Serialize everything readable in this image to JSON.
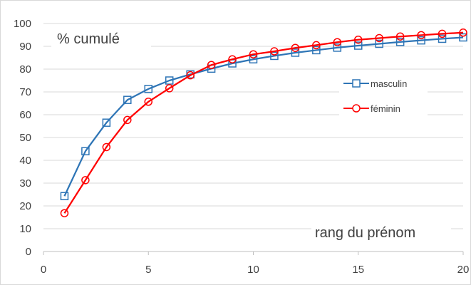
{
  "chart_data": {
    "type": "line",
    "title": "",
    "xlabel": "rang du prénom",
    "ylabel": "% cumulé",
    "xlim": [
      0,
      20
    ],
    "ylim": [
      0,
      100
    ],
    "x_ticks": [
      0,
      5,
      10,
      15,
      20
    ],
    "y_ticks": [
      0,
      10,
      20,
      30,
      40,
      50,
      60,
      70,
      80,
      90,
      100
    ],
    "grid": "horizontal",
    "legend_position": "right",
    "x": [
      1,
      2,
      3,
      4,
      5,
      6,
      7,
      8,
      9,
      10,
      11,
      12,
      13,
      14,
      15,
      16,
      17,
      18,
      19,
      20
    ],
    "series": [
      {
        "name": "masculin",
        "color": "#2E75B6",
        "marker": "square",
        "values": [
          24.3,
          44.0,
          56.5,
          66.5,
          71.3,
          75.0,
          77.7,
          80.2,
          82.5,
          84.3,
          85.8,
          87.2,
          88.3,
          89.4,
          90.3,
          91.1,
          91.9,
          92.6,
          93.3,
          93.9
        ]
      },
      {
        "name": "féminin",
        "color": "#FF0000",
        "marker": "circle",
        "values": [
          16.8,
          31.3,
          45.8,
          57.7,
          65.7,
          71.6,
          77.3,
          81.8,
          84.3,
          86.5,
          87.8,
          89.3,
          90.5,
          91.8,
          92.9,
          93.6,
          94.3,
          94.9,
          95.5,
          96.0
        ]
      }
    ]
  }
}
